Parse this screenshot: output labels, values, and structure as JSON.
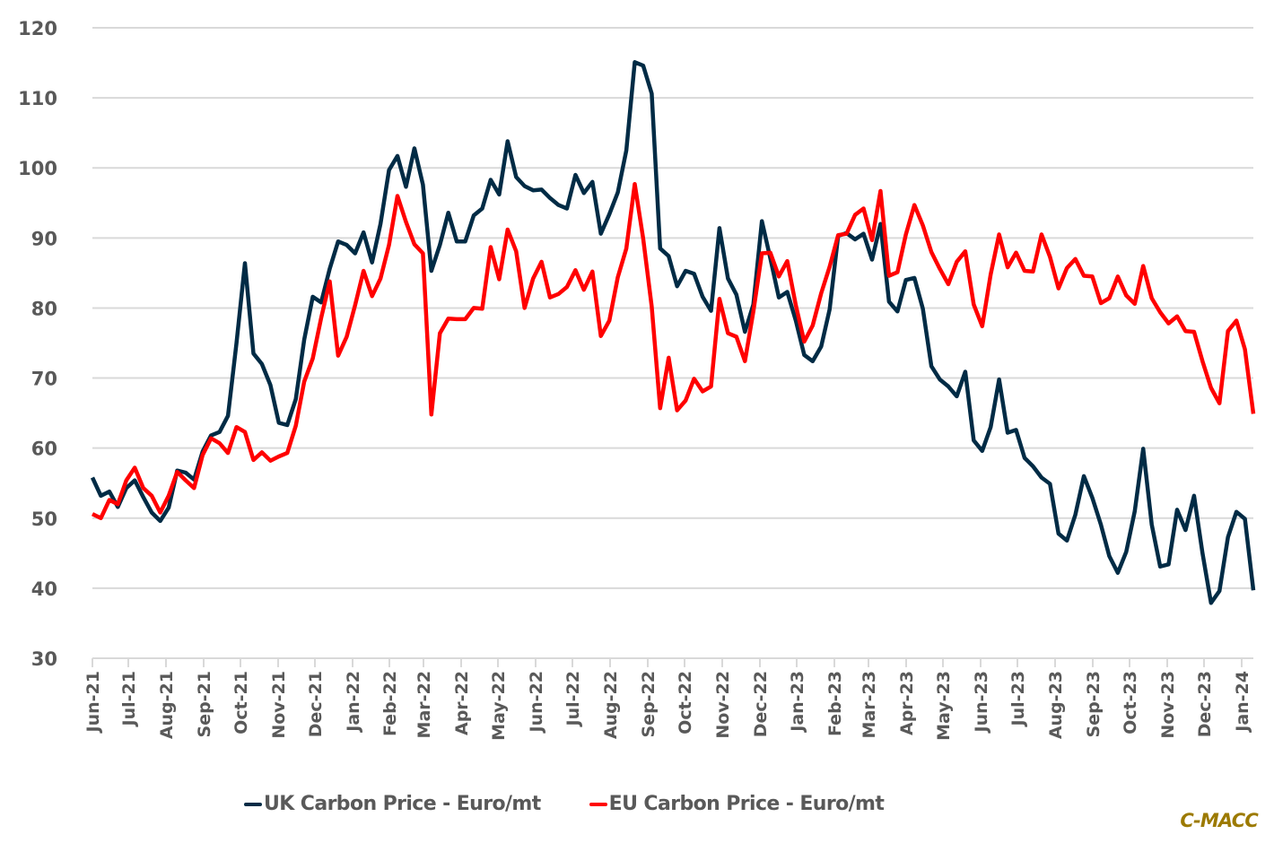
{
  "chart_data": {
    "type": "line",
    "title": "",
    "xlabel": "",
    "ylabel": "",
    "ylim": [
      30,
      120
    ],
    "yticks": [
      30,
      40,
      50,
      60,
      70,
      80,
      90,
      100,
      110,
      120
    ],
    "grid": true,
    "legend_position": "bottom",
    "x_tick_labels": [
      "Jun-21",
      "Jul-21",
      "Aug-21",
      "Sep-21",
      "Oct-21",
      "Nov-21",
      "Dec-21",
      "Jan-22",
      "Feb-22",
      "Mar-22",
      "Apr-22",
      "May-22",
      "Jun-22",
      "Jul-22",
      "Aug-22",
      "Sep-22",
      "Oct-22",
      "Nov-22",
      "Dec-22",
      "Jan-23",
      "Feb-23",
      "Mar-23",
      "Apr-23",
      "May-23",
      "Jun-23",
      "Jul-23",
      "Aug-23",
      "Sep-23",
      "Oct-23",
      "Nov-23",
      "Dec-23",
      "Jan-24"
    ],
    "x_frequency": "weekly",
    "series": [
      {
        "name": "UK Carbon Price - Euro/mt",
        "color": "#002B45",
        "values": [
          55.8,
          53.2,
          53.8,
          51.6,
          54.3,
          55.4,
          53.0,
          50.8,
          49.6,
          51.5,
          56.8,
          56.5,
          55.5,
          59.5,
          61.8,
          62.3,
          64.6,
          75.0,
          86.4,
          73.5,
          72.0,
          69.0,
          63.6,
          63.3,
          67.0,
          75.5,
          81.6,
          80.8,
          85.6,
          89.5,
          89.0,
          87.8,
          90.8,
          86.5,
          92.0,
          99.7,
          101.7,
          97.3,
          102.8,
          97.6,
          85.3,
          89.0,
          93.6,
          89.5,
          89.5,
          93.2,
          94.2,
          98.3,
          96.2,
          103.8,
          98.7,
          97.4,
          96.8,
          96.9,
          95.7,
          94.7,
          94.2,
          99.0,
          96.4,
          98.0,
          90.6,
          93.4,
          96.5,
          102.5,
          115.1,
          114.6,
          110.6,
          88.5,
          87.4,
          83.1,
          85.3,
          84.9,
          81.6,
          79.6,
          91.4,
          84.2,
          81.9,
          76.6,
          80.5,
          92.4,
          87.1,
          81.5,
          82.3,
          78.2,
          73.3,
          72.4,
          74.5,
          79.8,
          90.3,
          90.7,
          89.8,
          90.6,
          86.9,
          92.0,
          80.9,
          79.5,
          84.0,
          84.3,
          79.9,
          71.7,
          69.8,
          68.8,
          67.4,
          70.9,
          61.1,
          59.6,
          63.0,
          69.8,
          62.2,
          62.6,
          58.6,
          57.4,
          55.8,
          54.9,
          47.8,
          46.8,
          50.5,
          56.0,
          52.9,
          49.1,
          44.6,
          42.2,
          45.2,
          51.0,
          59.9,
          49.1,
          43.1,
          43.4,
          51.2,
          48.3,
          53.2,
          45.0,
          37.9,
          39.6,
          47.3,
          50.9,
          49.9,
          39.7
        ]
      },
      {
        "name": "EU Carbon Price - Euro/mt",
        "color": "#FF0000",
        "values": [
          50.6,
          50.0,
          52.6,
          52.0,
          55.4,
          57.2,
          54.3,
          53.2,
          50.8,
          53.2,
          56.6,
          55.4,
          54.3,
          59.0,
          61.4,
          60.7,
          59.3,
          63.0,
          62.3,
          58.3,
          59.4,
          58.2,
          58.8,
          59.3,
          63.2,
          69.5,
          72.8,
          78.6,
          83.8,
          73.2,
          75.9,
          80.4,
          85.3,
          81.7,
          84.2,
          89.0,
          96.0,
          92.3,
          89.1,
          87.8,
          64.8,
          76.4,
          78.5,
          78.4,
          78.4,
          80.0,
          79.9,
          88.7,
          84.1,
          91.2,
          88.1,
          80.0,
          84.2,
          86.6,
          81.5,
          82.0,
          83.0,
          85.4,
          82.6,
          85.2,
          76.0,
          78.2,
          84.4,
          88.5,
          97.7,
          89.9,
          80.2,
          65.7,
          72.9,
          65.4,
          66.8,
          69.9,
          68.1,
          68.8,
          81.3,
          76.4,
          75.9,
          72.4,
          79.5,
          87.8,
          87.9,
          84.5,
          86.7,
          80.4,
          75.2,
          77.5,
          82.1,
          85.9,
          90.4,
          90.6,
          93.3,
          94.2,
          89.7,
          96.7,
          84.6,
          85.1,
          90.5,
          94.7,
          91.8,
          88.0,
          85.6,
          83.4,
          86.6,
          88.1,
          80.5,
          77.4,
          84.8,
          90.5,
          85.8,
          87.9,
          85.3,
          85.2,
          90.5,
          87.3,
          82.8,
          85.7,
          87.0,
          84.6,
          84.5,
          80.7,
          81.4,
          84.5,
          81.8,
          80.6,
          86.0,
          81.4,
          79.4,
          77.8,
          78.8,
          76.7,
          76.6,
          72.4,
          68.6,
          66.4,
          76.7,
          78.2,
          74.1,
          64.9
        ]
      }
    ]
  },
  "legend": {
    "items": [
      {
        "label": "UK Carbon Price - Euro/mt",
        "color": "#002B45"
      },
      {
        "label": "EU Carbon Price - Euro/mt",
        "color": "#FF0000"
      }
    ]
  },
  "brand": {
    "label": "C-MACC",
    "color": "#9C7A00"
  }
}
